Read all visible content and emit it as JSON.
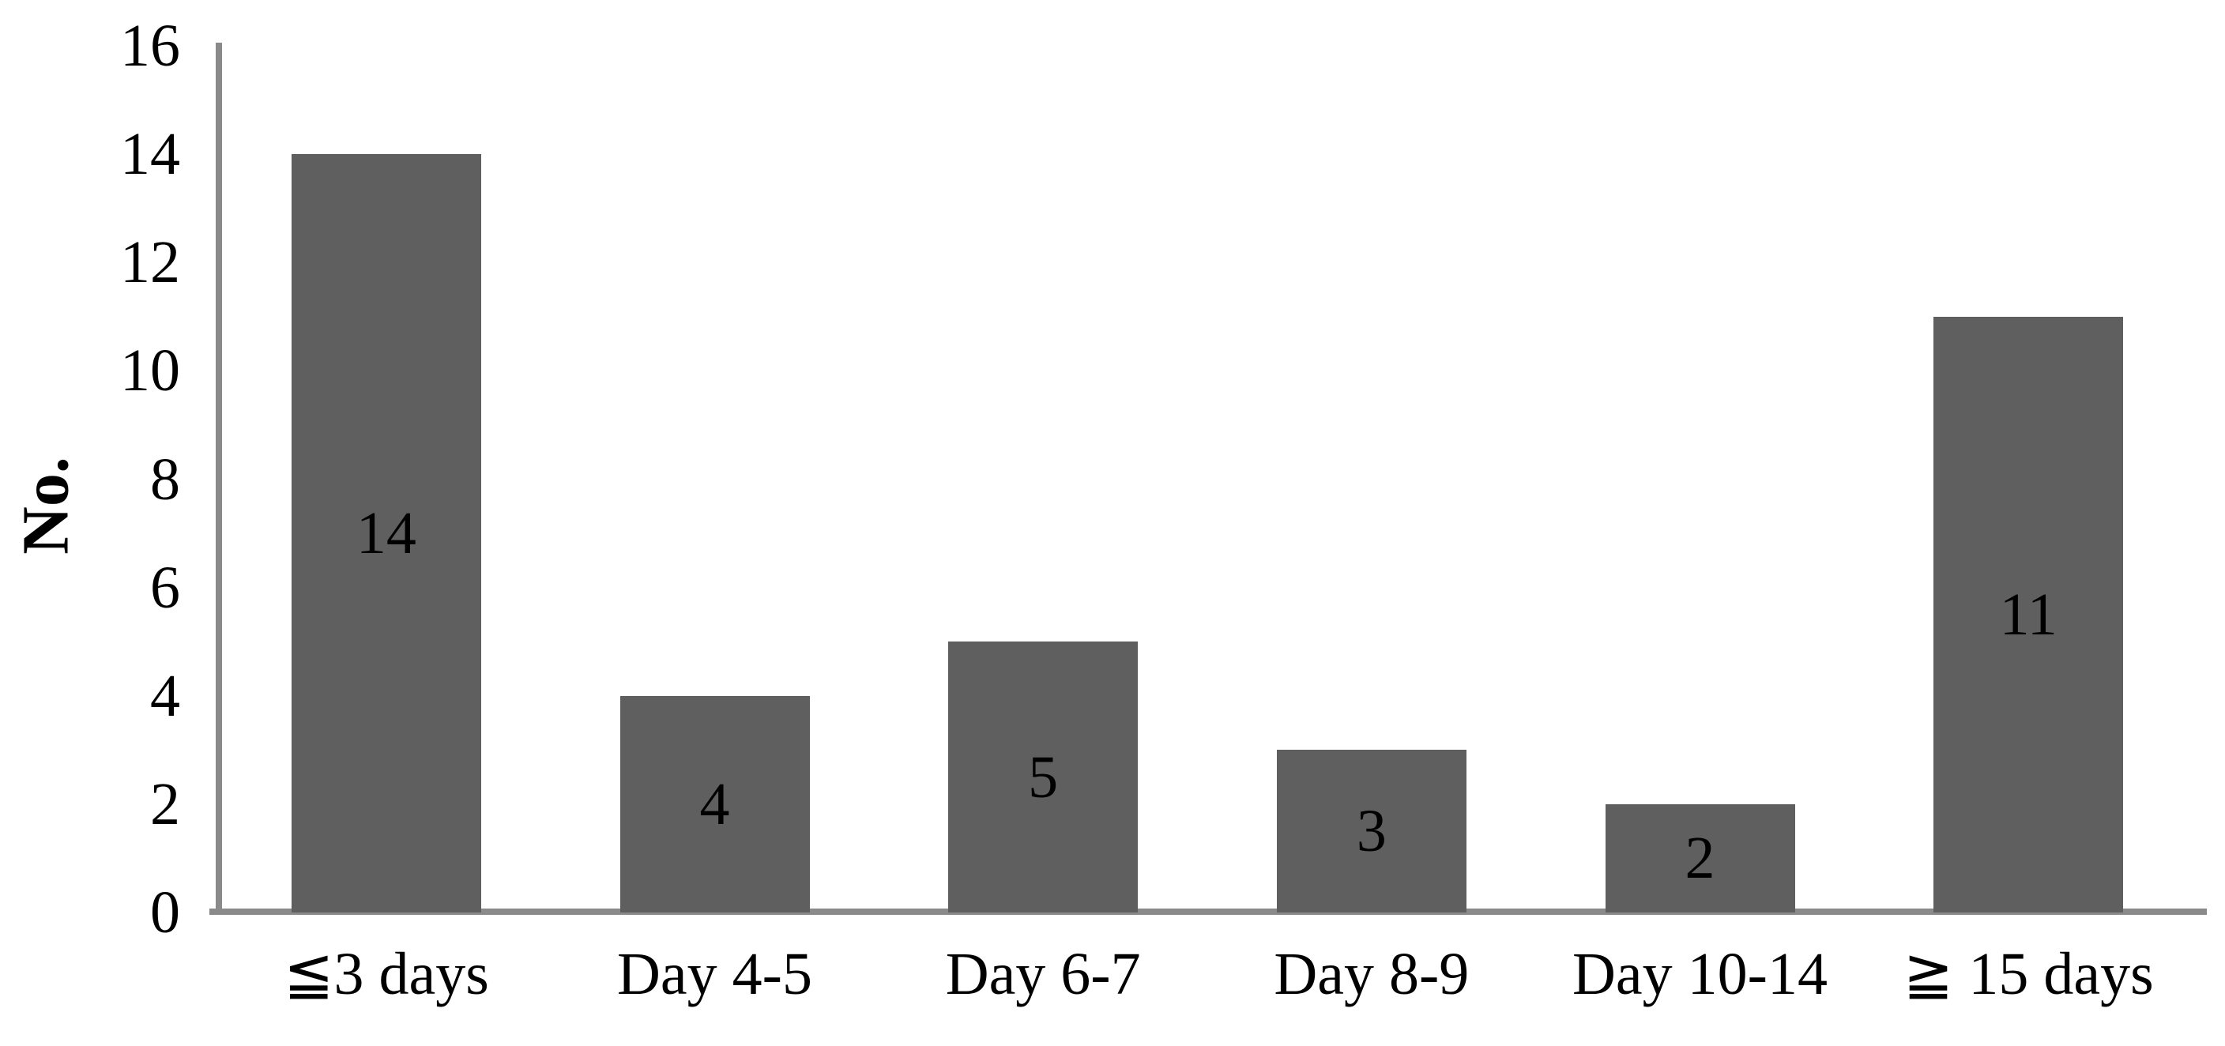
{
  "chart_data": {
    "type": "bar",
    "title": "",
    "categories": [
      "≦3 days",
      "Day 4-5",
      "Day 6-7",
      "Day 8-9",
      "Day 10-14",
      "≧ 15 days"
    ],
    "values": [
      14,
      4,
      5,
      3,
      2,
      11
    ],
    "data_labels": [
      "14",
      "4",
      "5",
      "3",
      "2",
      "11"
    ],
    "xlabel": "",
    "ylabel": "No.",
    "ylim": [
      0,
      16
    ],
    "yticks": [
      0,
      2,
      4,
      6,
      8,
      10,
      12,
      14,
      16
    ],
    "grid": false,
    "legend_position": "none",
    "data_label_position": "center",
    "colors": {
      "bar_fill": "#5f5f5f",
      "axis_line": "#8a8a8a",
      "text": "#000000",
      "background": "#ffffff"
    }
  }
}
